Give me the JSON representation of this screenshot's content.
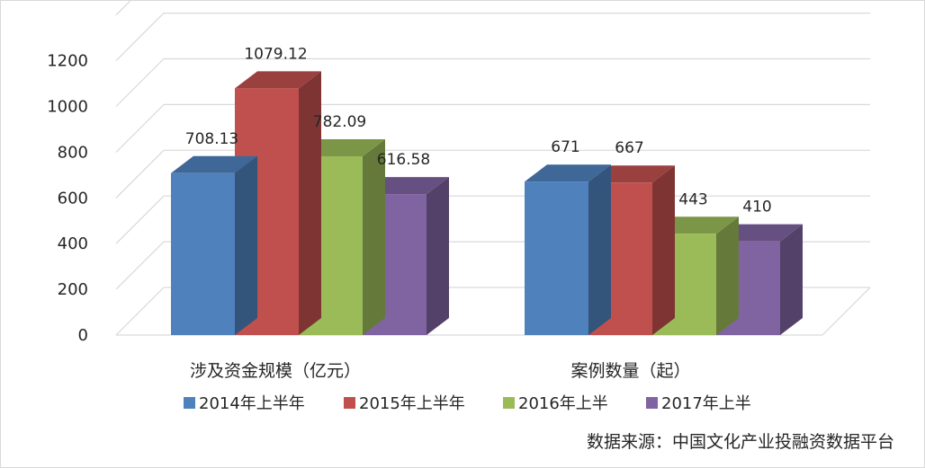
{
  "chart_data": {
    "type": "bar",
    "three_d": true,
    "categories": [
      "涉及资金规模（亿元）",
      "案例数量（起）"
    ],
    "series": [
      {
        "name": "2014年上半年",
        "color": "#4f81bd",
        "values": [
          708.13,
          671
        ]
      },
      {
        "name": "2015年上半年",
        "color": "#c0504d",
        "values": [
          1079.12,
          667
        ]
      },
      {
        "name": "2016年上半",
        "color": "#9bbb59",
        "values": [
          782.09,
          443
        ]
      },
      {
        "name": "2017年上半",
        "color": "#8064a2",
        "values": [
          616.58,
          410
        ]
      }
    ],
    "data_labels": [
      [
        "708.13",
        "671"
      ],
      [
        "1079.12",
        "667"
      ],
      [
        "782.09",
        "443"
      ],
      [
        "616.58",
        "410"
      ]
    ],
    "yticks": [
      0,
      200,
      400,
      600,
      800,
      1000,
      1200
    ],
    "ylim": [
      0,
      1400
    ],
    "grid": true,
    "legend_position": "bottom",
    "source": "数据来源：中国文化产业投融资数据平台"
  }
}
